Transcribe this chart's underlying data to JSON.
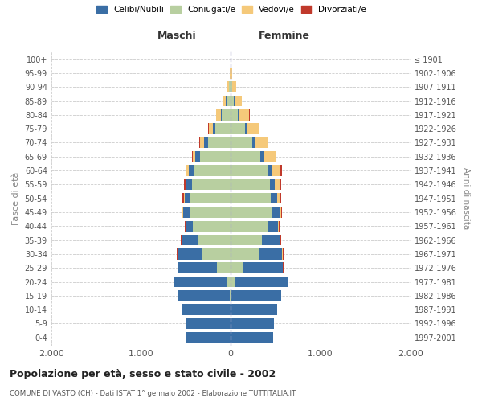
{
  "age_groups": [
    "0-4",
    "5-9",
    "10-14",
    "15-19",
    "20-24",
    "25-29",
    "30-34",
    "35-39",
    "40-44",
    "45-49",
    "50-54",
    "55-59",
    "60-64",
    "65-69",
    "70-74",
    "75-79",
    "80-84",
    "85-89",
    "90-94",
    "95-99",
    "100+"
  ],
  "birth_years": [
    "1997-2001",
    "1992-1996",
    "1987-1991",
    "1982-1986",
    "1977-1981",
    "1972-1976",
    "1967-1971",
    "1962-1966",
    "1957-1961",
    "1952-1956",
    "1947-1951",
    "1942-1946",
    "1937-1941",
    "1932-1936",
    "1927-1931",
    "1922-1926",
    "1917-1921",
    "1912-1916",
    "1907-1911",
    "1902-1906",
    "≤ 1901"
  ],
  "males_coniugati": [
    0,
    1,
    2,
    10,
    50,
    150,
    320,
    370,
    420,
    455,
    450,
    430,
    410,
    340,
    250,
    170,
    100,
    50,
    18,
    3,
    1
  ],
  "males_celibi": [
    500,
    505,
    545,
    570,
    580,
    430,
    270,
    170,
    80,
    75,
    65,
    62,
    58,
    55,
    45,
    25,
    12,
    8,
    5,
    2,
    2
  ],
  "males_vedovi": [
    0,
    0,
    0,
    0,
    1,
    1,
    2,
    3,
    5,
    7,
    9,
    14,
    22,
    28,
    48,
    52,
    52,
    32,
    18,
    4,
    1
  ],
  "males_divorziati": [
    0,
    0,
    0,
    1,
    3,
    5,
    10,
    12,
    10,
    10,
    12,
    14,
    14,
    10,
    9,
    5,
    3,
    2,
    1,
    0,
    0
  ],
  "females_coniugate": [
    0,
    1,
    2,
    10,
    48,
    138,
    308,
    348,
    418,
    458,
    448,
    438,
    408,
    328,
    238,
    158,
    78,
    38,
    14,
    2,
    0
  ],
  "females_nubili": [
    475,
    485,
    515,
    555,
    585,
    445,
    265,
    198,
    108,
    88,
    68,
    52,
    48,
    42,
    38,
    22,
    12,
    8,
    5,
    2,
    2
  ],
  "females_vedove": [
    0,
    0,
    0,
    0,
    1,
    1,
    3,
    5,
    9,
    18,
    38,
    58,
    98,
    128,
    138,
    138,
    118,
    78,
    38,
    10,
    2
  ],
  "females_divorziate": [
    0,
    0,
    0,
    1,
    3,
    5,
    10,
    12,
    10,
    10,
    12,
    14,
    14,
    10,
    9,
    5,
    3,
    2,
    1,
    0,
    0
  ],
  "color_celibi": "#3a6ea5",
  "color_coniugati": "#b8cfa0",
  "color_vedovi": "#f5c97a",
  "color_divorziati": "#c0392b",
  "xlim": 2000,
  "title_main": "Popolazione per età, sesso e stato civile - 2002",
  "title_sub": "COMUNE DI VASTO (CH) - Dati ISTAT 1° gennaio 2002 - Elaborazione TUTTITALIA.IT",
  "ylabel_left": "Fasce di età",
  "ylabel_right": "Anni di nascita",
  "label_maschi": "Maschi",
  "label_femmine": "Femmine",
  "legend_labels": [
    "Celibi/Nubili",
    "Coniugati/e",
    "Vedovi/e",
    "Divorziati/e"
  ],
  "bg_color": "#ffffff",
  "grid_color": "#cccccc"
}
